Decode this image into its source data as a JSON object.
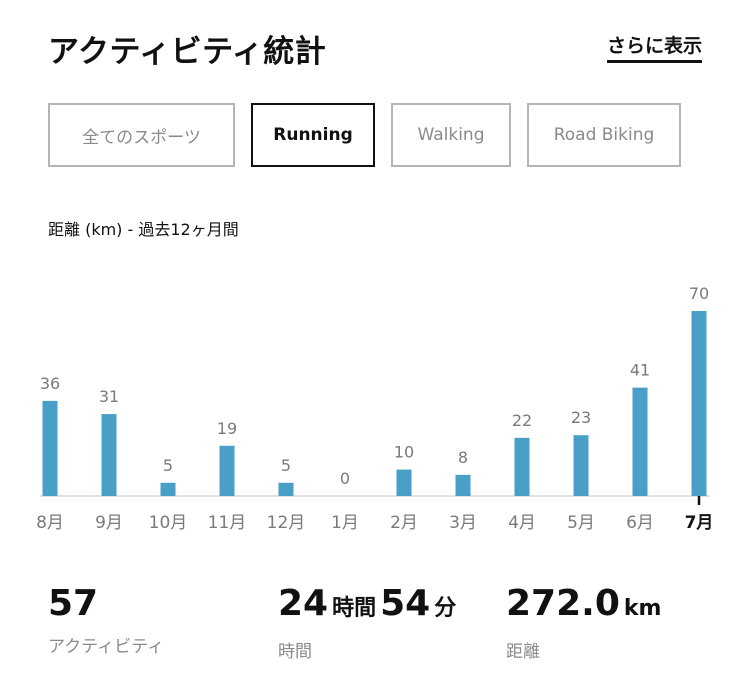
{
  "header": {
    "title": "アクティビティ統計",
    "more_link": "さらに表示"
  },
  "tabs": [
    {
      "label": "全てのスポーツ",
      "active": false
    },
    {
      "label": "Running",
      "active": true
    },
    {
      "label": "Walking",
      "active": false
    },
    {
      "label": "Road Biking",
      "active": false
    }
  ],
  "chart_label": "距離 (km) - 過去12ヶ月間",
  "chart_data": {
    "type": "bar",
    "categories": [
      "8月",
      "9月",
      "10月",
      "11月",
      "12月",
      "1月",
      "2月",
      "3月",
      "4月",
      "5月",
      "6月",
      "7月"
    ],
    "values": [
      36,
      31,
      5,
      19,
      5,
      0,
      10,
      8,
      22,
      23,
      41,
      70
    ],
    "highlighted_category": "7月",
    "ylim": [
      0,
      70
    ],
    "grid": false,
    "colors": {
      "bar": "#4a9fc7",
      "label": "#7a7a7a",
      "axis": "#d9d9d9",
      "highlight": "#111111"
    }
  },
  "stats": {
    "activities": {
      "value": "57",
      "label": "アクティビティ"
    },
    "time": {
      "hours": "24",
      "hours_unit": "時間",
      "minutes": "54",
      "minutes_unit": "分",
      "label": "時間"
    },
    "distance": {
      "value": "272.0",
      "unit": "km",
      "label": "距離"
    }
  }
}
